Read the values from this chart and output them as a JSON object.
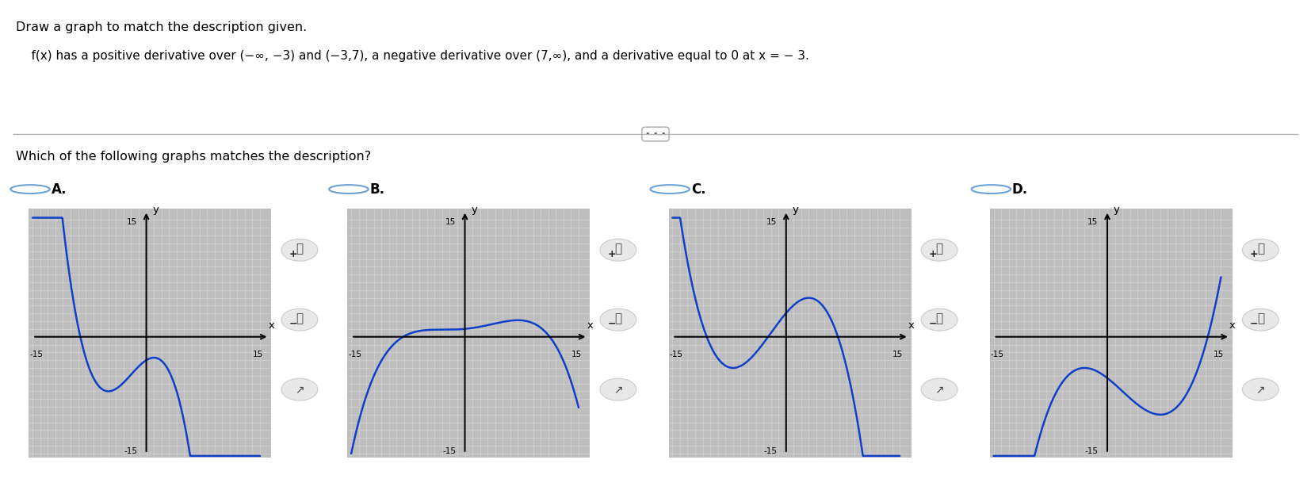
{
  "title_line1": "Draw a graph to match the description given.",
  "title_line2": "    f(x) has a positive derivative over (−∞, −3) and (−3,7), a negative derivative over (7,∞), and a derivative equal to 0 at x = − 3.",
  "subtitle": "Which of the following graphs matches the description?",
  "options": [
    "A.",
    "B.",
    "C.",
    "D."
  ],
  "grid_bg": "#bebebe",
  "grid_line_color": "#d8d8d8",
  "curve_color": "#1040c8",
  "xlim": [
    -15,
    15
  ],
  "ylim": [
    -15,
    15
  ],
  "curve_linewidth": 1.8,
  "option_circle_color": "#6ba3d6",
  "separator_color": "#b0b0b0",
  "white": "#ffffff",
  "black": "#000000"
}
